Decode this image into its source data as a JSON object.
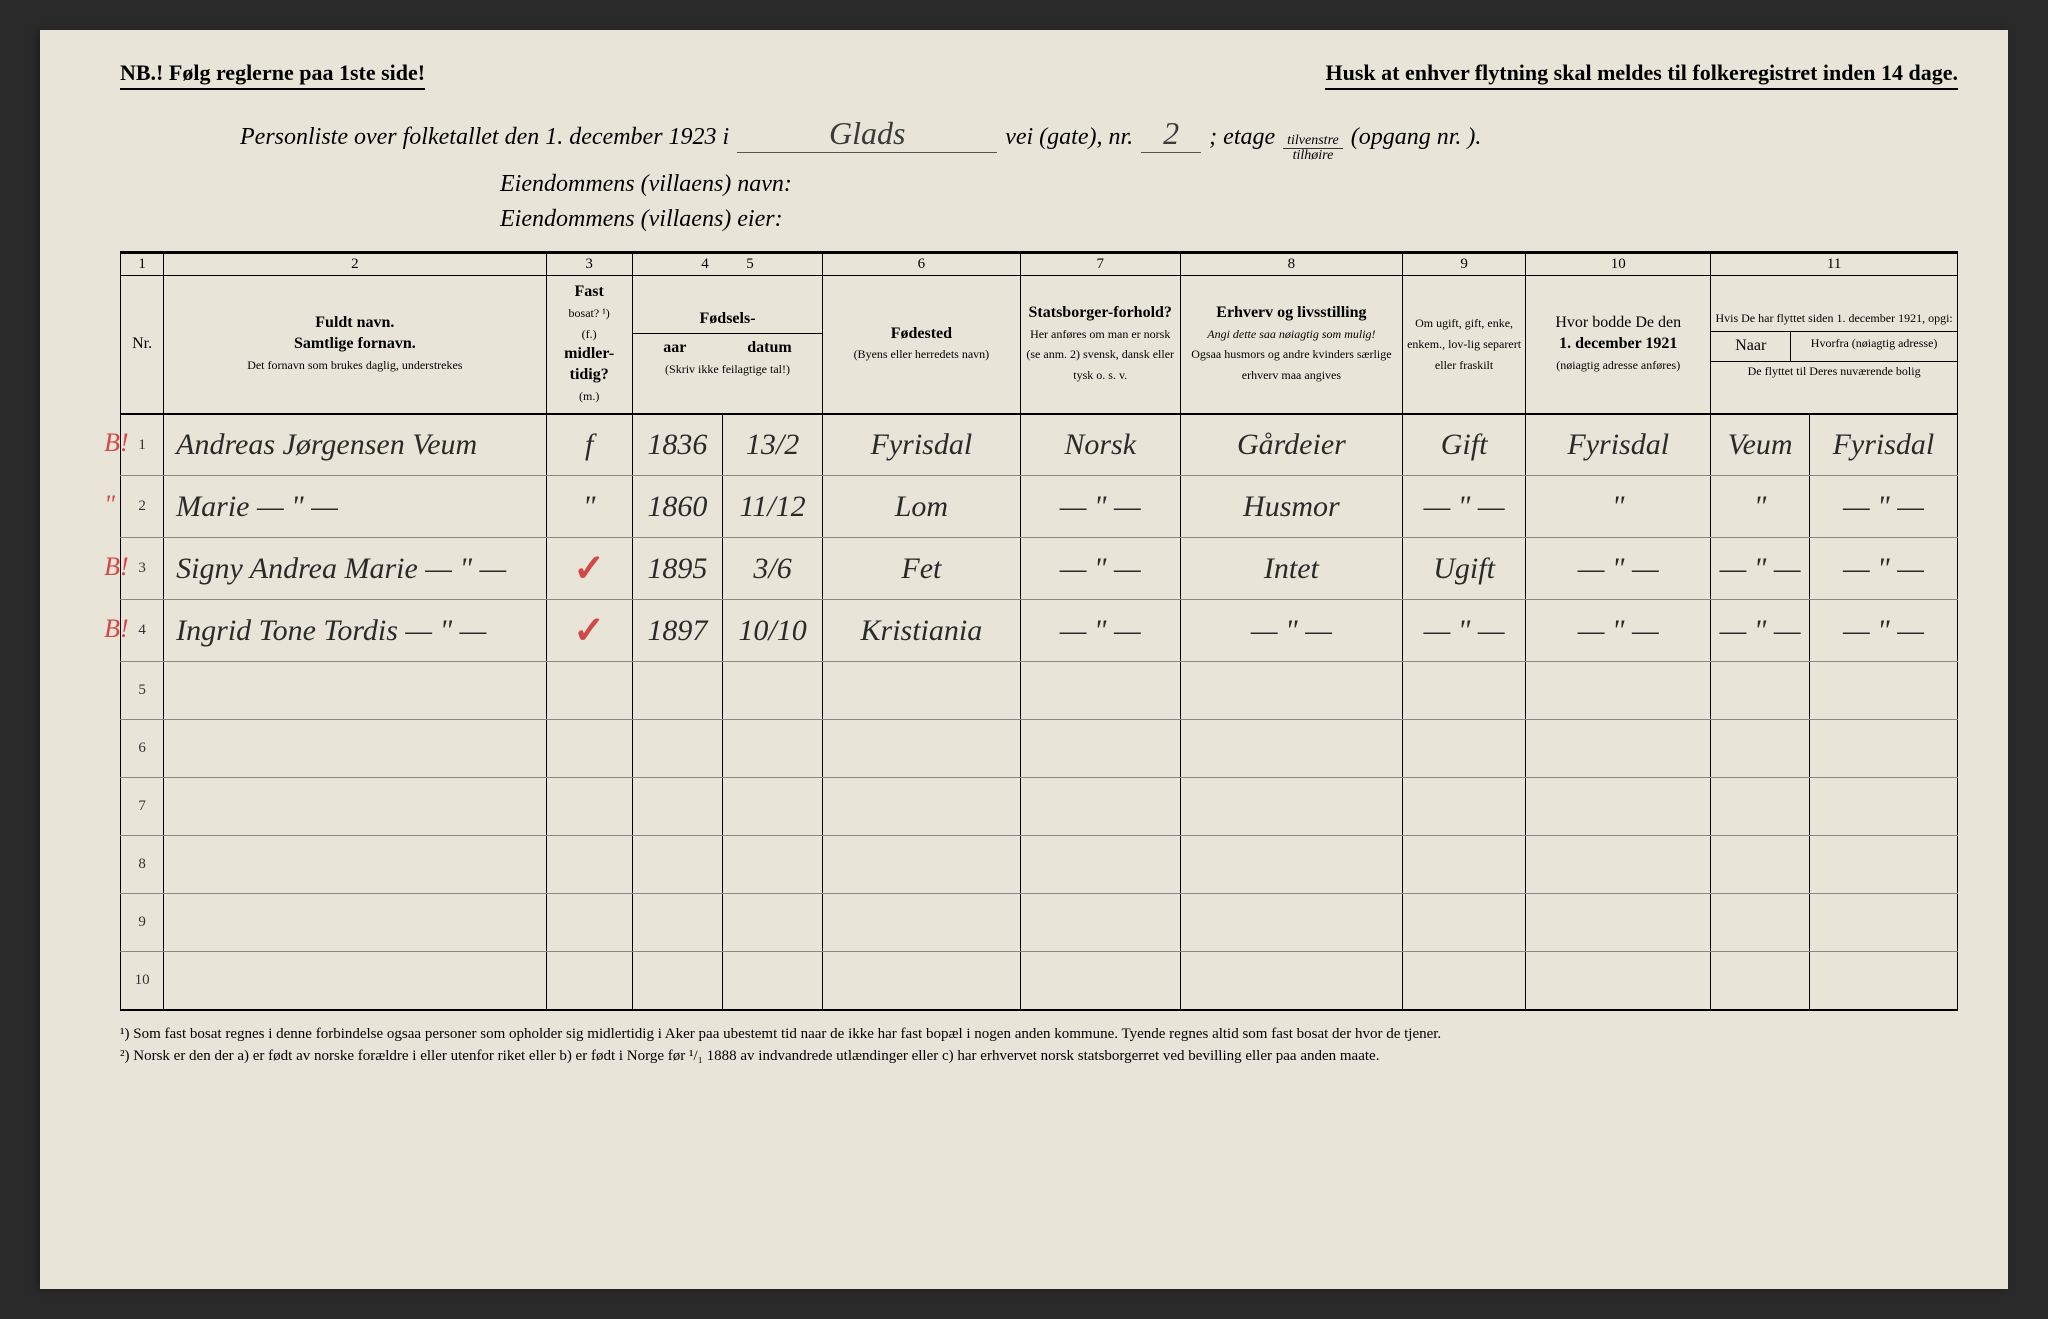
{
  "top": {
    "left": "NB.! Følg reglerne paa 1ste side!",
    "right": "Husk at enhver flytning skal meldes til folkeregistret inden 14 dage."
  },
  "header": {
    "line1_a": "Personliste over folketallet den 1. december 1923 i",
    "street": "Glads",
    "line1_b": "vei (gate), nr.",
    "nr": "2",
    "line1_c": ";        etage",
    "frac_top": "tilvenstre",
    "frac_bot": "tilhøire",
    "line1_d": "(opgang nr.      ).",
    "line2": "Eiendommens (villaens) navn:",
    "line3": "Eiendommens (villaens) eier:"
  },
  "colnums": [
    "1",
    "2",
    "3",
    "4",
    "5",
    "6",
    "7",
    "8",
    "9",
    "10",
    "11"
  ],
  "headers": {
    "nr": "Nr.",
    "c2a": "Fuldt navn.",
    "c2b": "Samtlige fornavn.",
    "c2c": "Det fornavn som brukes daglig, understrekes",
    "c3a": "Fast",
    "c3b": "bosat? ¹)",
    "c3c": "(f.)",
    "c3d": "midler-tidig?",
    "c3e": "(m.)",
    "c45a": "Fødsels-",
    "c4": "aar",
    "c5": "datum",
    "c45b": "(Skriv ikke feilagtige tal!)",
    "c6a": "Fødested",
    "c6b": "(Byens eller herredets navn)",
    "c7a": "Statsborger-forhold?",
    "c7b": "Her anføres om man er norsk (se anm. 2) svensk, dansk eller tysk o. s. v.",
    "c8a": "Erhverv og livsstilling",
    "c8b": "Angi dette saa nøiagtig som mulig!",
    "c8c": "Ogsaa husmors og andre kvinders særlige erhverv maa angives",
    "c9": "Om ugift, gift, enke, enkem., lov-lig separert eller fraskilt",
    "c10a": "Hvor bodde De den",
    "c10b": "1. december 1921",
    "c10c": "(nøiagtig adresse anføres)",
    "c11a": "Hvis De har flyttet siden 1. december 1921, opgi:",
    "c11b": "Naar",
    "c11c": "Hvorfra (nøiagtig adresse)",
    "c11d": "De flyttet til Deres nuværende bolig"
  },
  "rows": [
    {
      "nr": "1",
      "mark": "B!",
      "name": "Andreas Jørgensen Veum",
      "fm": "f",
      "aar": "1836",
      "dat": "13/2",
      "sted": "Fyrisdal",
      "stat": "Norsk",
      "erhv": "Gårdeier",
      "giv": "Gift",
      "bod": "Fyrisdal",
      "naar": "Veum",
      "fra": "Fyrisdal"
    },
    {
      "nr": "2",
      "mark": "\"",
      "name": "Marie    —  \"  —",
      "fm": "\"",
      "aar": "1860",
      "dat": "11/12",
      "sted": "Lom",
      "stat": "— \" —",
      "erhv": "Husmor",
      "giv": "— \" —",
      "bod": "\"",
      "naar": "\"",
      "fra": "— \" —"
    },
    {
      "nr": "3",
      "mark": "B!",
      "name": "Signy Andrea Marie   — \" —",
      "fm": "✓",
      "aar": "1895",
      "dat": "3/6",
      "sted": "Fet",
      "stat": "— \" —",
      "erhv": "Intet",
      "giv": "Ugift",
      "bod": "— \" —",
      "naar": "— \" —",
      "fra": "— \" —"
    },
    {
      "nr": "4",
      "mark": "B!",
      "name": "Ingrid Tone Tordis  — \" —",
      "fm": "✓",
      "aar": "1897",
      "dat": "10/10",
      "sted": "Kristiania",
      "stat": "— \" —",
      "erhv": "— \" —",
      "giv": "— \" —",
      "bod": "— \" —",
      "naar": "— \" —",
      "fra": "— \" —"
    },
    {
      "nr": "5"
    },
    {
      "nr": "6"
    },
    {
      "nr": "7"
    },
    {
      "nr": "8"
    },
    {
      "nr": "9"
    },
    {
      "nr": "10"
    }
  ],
  "footnotes": {
    "f1": "¹) Som fast bosat regnes i denne forbindelse ogsaa personer som opholder sig midlertidig i Aker paa ubestemt tid naar de ikke har fast bopæl i nogen anden kommune. Tyende regnes altid som fast bosat der hvor de tjener.",
    "f2": "²) Norsk er den der a) er født av norske forældre i eller utenfor riket eller b) er født i Norge før ¹/₁ 1888 av indvandrede utlændinger eller c) har erhvervet norsk statsborgerret ved bevilling eller paa anden maate."
  }
}
